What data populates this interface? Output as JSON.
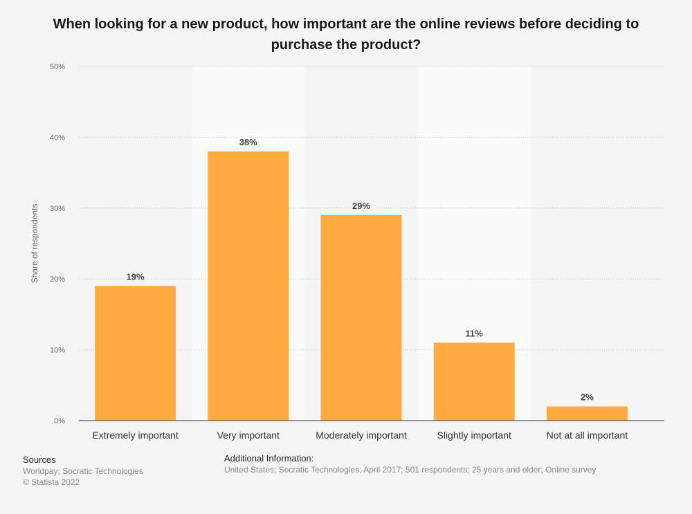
{
  "chart_data": {
    "type": "bar",
    "title": "When looking for a new product, how important are the online reviews before deciding to purchase the product?",
    "ylabel": "Share of respondents",
    "xlabel": "",
    "categories": [
      "Extremely important",
      "Very important",
      "Moderately important",
      "Slightly important",
      "Not at all important"
    ],
    "values": [
      19,
      38,
      29,
      11,
      2
    ],
    "value_labels": [
      "19%",
      "38%",
      "29%",
      "11%",
      "2%"
    ],
    "ylim": [
      0,
      50
    ],
    "yticks": [
      0,
      10,
      20,
      30,
      40,
      50
    ],
    "ytick_labels": [
      "0%",
      "10%",
      "20%",
      "30%",
      "40%",
      "50%"
    ],
    "grid": true,
    "bar_color": "#ffab40"
  },
  "footer": {
    "sources_heading": "Sources",
    "sources_lines": [
      "Worldpay; Socratic Technologies",
      "© Statista 2022"
    ],
    "additional_heading": "Additional Information:",
    "additional_text": "United States; Socratic Technologies; April 2017; 501 respondents; 25 years and older; Online survey"
  }
}
